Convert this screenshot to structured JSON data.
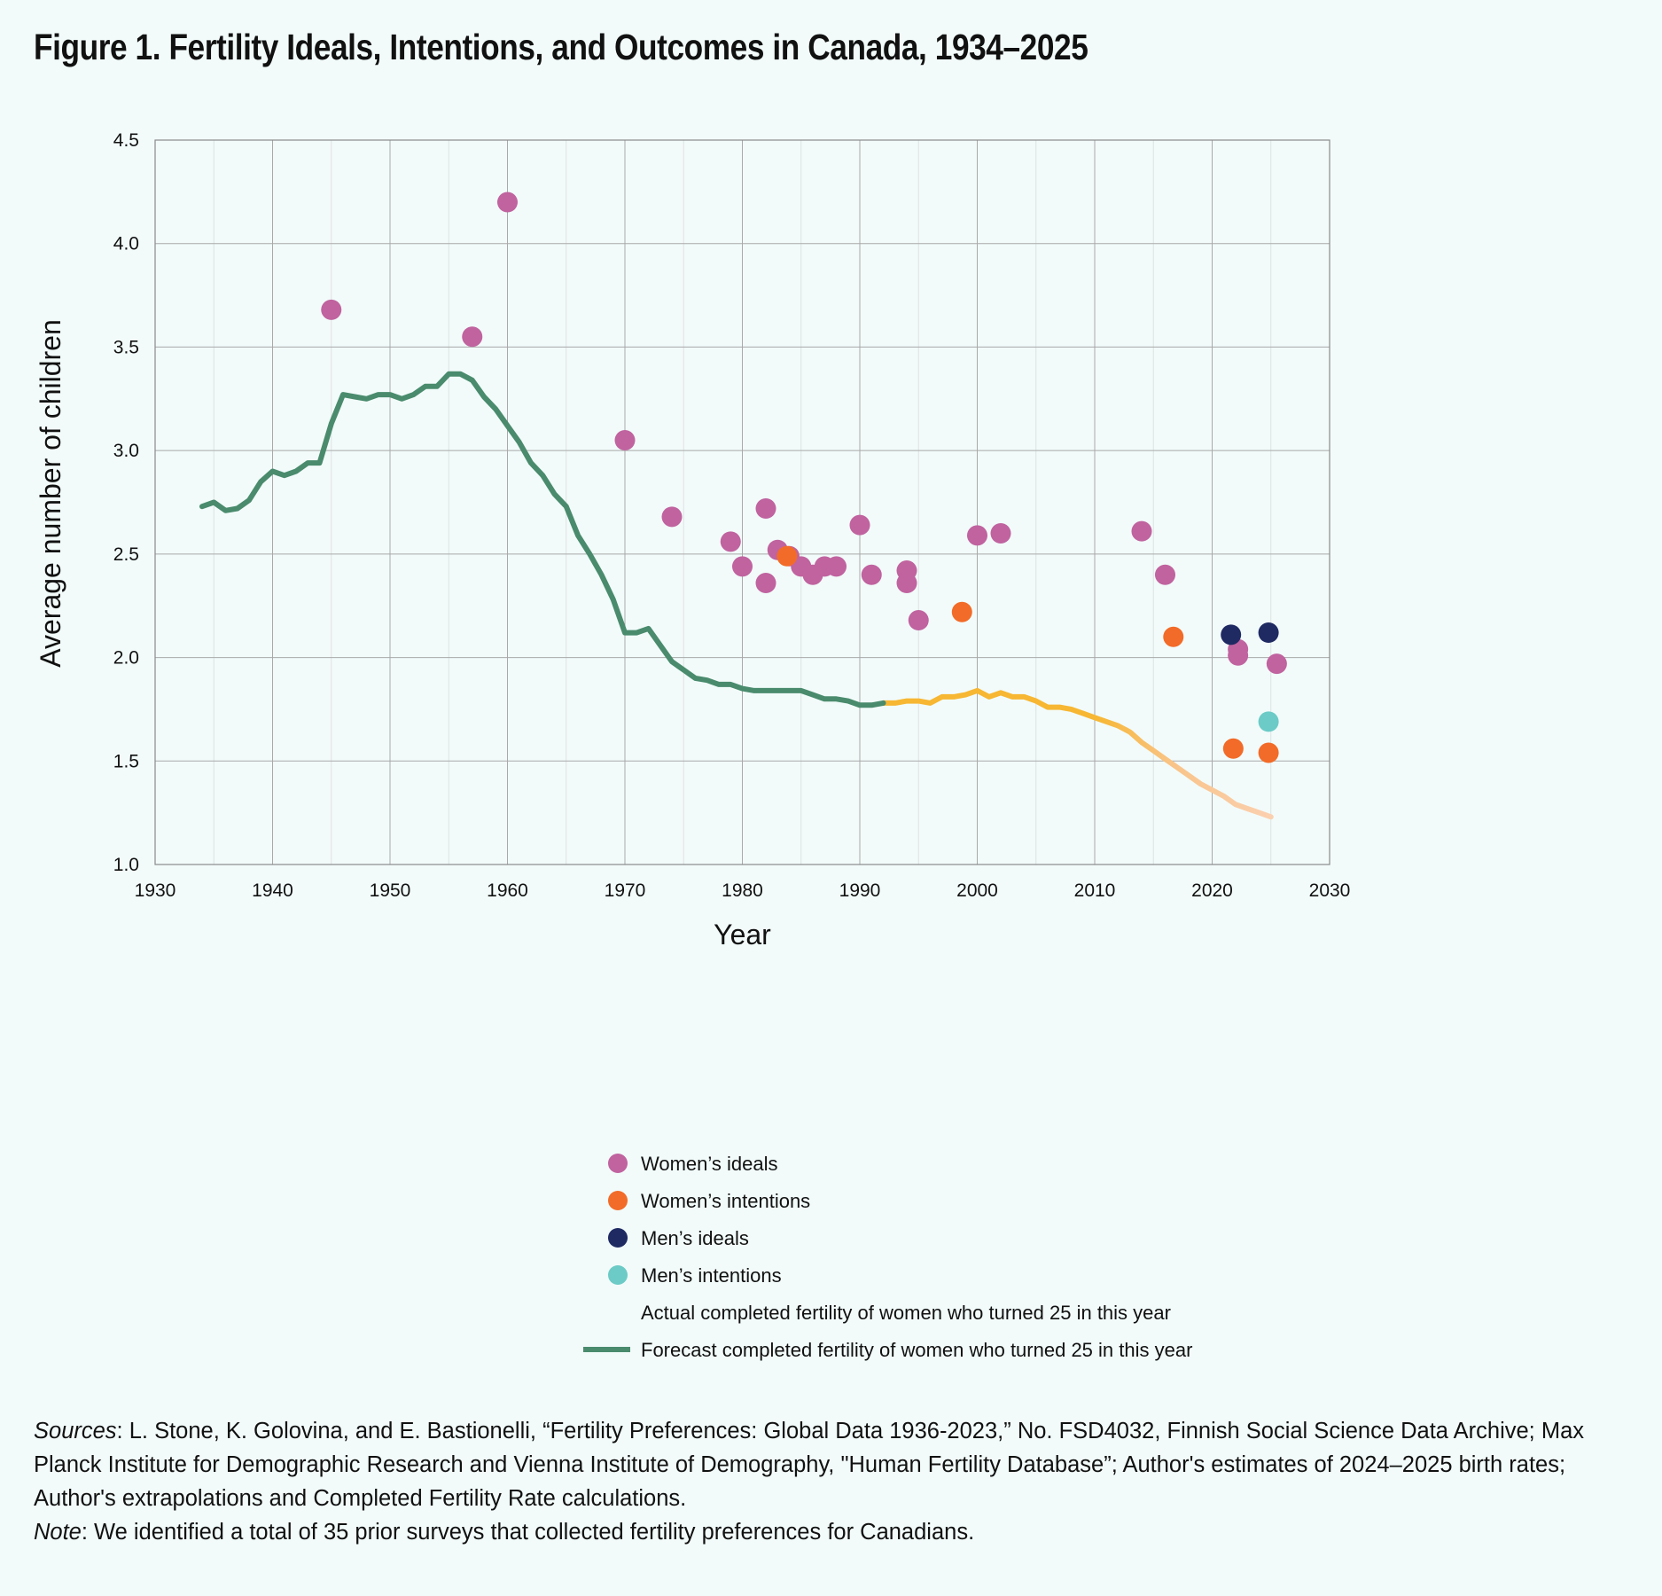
{
  "title": "Figure 1. Fertility Ideals, Intentions, and Outcomes in Canada, 1934–2025",
  "notes": {
    "sources_label": "Sources",
    "sources_text": ": L. Stone, K. Golovina, and E. Bastionelli, “Fertility Preferences: Global Data 1936-2023,” No. FSD4032, Finnish Social Science Data Archive; Max Planck Institute for Demographic Research and Vienna Institute of Demography, \"Human Fertility Database”; Author's estimates of 2024–2025 birth rates; Author's extrapolations and Completed Fertility Rate calculations.",
    "note_label": "Note",
    "note_text": ": We identified a total of 35 prior surveys that collected fertility preferences for Canadians."
  },
  "chart_data": {
    "type": "line",
    "xlabel": "Year",
    "ylabel": "Average number of children",
    "xlim": [
      1930,
      2030
    ],
    "ylim": [
      1.0,
      4.5
    ],
    "xticks": [
      1930,
      1940,
      1950,
      1960,
      1970,
      1980,
      1990,
      2000,
      2010,
      2020,
      2030
    ],
    "yticks": [
      "1.0",
      "1.5",
      "2.0",
      "2.5",
      "3.0",
      "3.5",
      "4.0",
      "4.5"
    ],
    "grid": true,
    "legend_position": "bottom",
    "colors": {
      "womens_ideals": "#c0639f",
      "womens_intentions": "#f26b28",
      "mens_ideals": "#1f2a63",
      "mens_intentions": "#6ccbc6",
      "actual": "#f7b733",
      "actual_faded": "#fbd0b0",
      "forecast": "#4a8b6d"
    },
    "series": [
      {
        "name": "Women’s ideals",
        "kind": "scatter",
        "color_key": "womens_ideals",
        "points": [
          [
            1945.0,
            3.68
          ],
          [
            1957.0,
            3.55
          ],
          [
            1960.0,
            4.2
          ],
          [
            1970.0,
            3.05
          ],
          [
            1974.0,
            2.68
          ],
          [
            1979.0,
            2.56
          ],
          [
            1980.0,
            2.44
          ],
          [
            1982.0,
            2.72
          ],
          [
            1982.0,
            2.36
          ],
          [
            1983.0,
            2.52
          ],
          [
            1984.0,
            2.49
          ],
          [
            1985.0,
            2.44
          ],
          [
            1986.0,
            2.4
          ],
          [
            1987.0,
            2.44
          ],
          [
            1988.0,
            2.44
          ],
          [
            1990.0,
            2.64
          ],
          [
            1991.0,
            2.4
          ],
          [
            1994.0,
            2.42
          ],
          [
            1994.0,
            2.36
          ],
          [
            1995.0,
            2.18
          ],
          [
            2000.0,
            2.59
          ],
          [
            2002.0,
            2.6
          ],
          [
            2014.0,
            2.61
          ],
          [
            2016.0,
            2.4
          ],
          [
            2022.2,
            2.04
          ],
          [
            2022.2,
            2.01
          ],
          [
            2025.5,
            1.97
          ]
        ]
      },
      {
        "name": "Women’s intentions",
        "kind": "scatter",
        "color_key": "womens_intentions",
        "points": [
          [
            1983.8,
            2.49
          ],
          [
            1998.7,
            2.22
          ],
          [
            2016.7,
            2.1
          ],
          [
            2021.8,
            1.56
          ],
          [
            2024.8,
            1.54
          ]
        ]
      },
      {
        "name": "Men’s ideals",
        "kind": "scatter",
        "color_key": "mens_ideals",
        "points": [
          [
            2021.6,
            2.11
          ],
          [
            2024.8,
            2.12
          ]
        ]
      },
      {
        "name": "Men’s intentions",
        "kind": "scatter",
        "color_key": "mens_intentions",
        "points": [
          [
            2024.8,
            1.69
          ]
        ]
      },
      {
        "name": "Actual completed fertility of women who turned 25 in this year",
        "kind": "line",
        "color_key": "actual",
        "points": [
          [
            1992,
            1.78
          ],
          [
            1993,
            1.78
          ],
          [
            1994,
            1.79
          ],
          [
            1995,
            1.79
          ],
          [
            1996,
            1.78
          ],
          [
            1997,
            1.81
          ],
          [
            1998,
            1.81
          ],
          [
            1999,
            1.82
          ],
          [
            2000,
            1.84
          ],
          [
            2001,
            1.81
          ],
          [
            2002,
            1.83
          ],
          [
            2003,
            1.81
          ],
          [
            2004,
            1.81
          ],
          [
            2005,
            1.79
          ],
          [
            2006,
            1.76
          ],
          [
            2007,
            1.76
          ],
          [
            2008,
            1.75
          ],
          [
            2009,
            1.73
          ],
          [
            2010,
            1.71
          ],
          [
            2011,
            1.69
          ],
          [
            2012,
            1.67
          ],
          [
            2013,
            1.64
          ],
          [
            2014,
            1.59
          ],
          [
            2015,
            1.55
          ],
          [
            2016,
            1.51
          ],
          [
            2017,
            1.47
          ],
          [
            2018,
            1.43
          ],
          [
            2019,
            1.39
          ],
          [
            2020,
            1.36
          ],
          [
            2021,
            1.33
          ],
          [
            2022,
            1.29
          ],
          [
            2023,
            1.27
          ],
          [
            2024,
            1.25
          ],
          [
            2025,
            1.23
          ]
        ]
      },
      {
        "name": "Forecast completed fertility of women who turned 25 in this year",
        "kind": "line",
        "color_key": "forecast",
        "points": [
          [
            1934,
            2.73
          ],
          [
            1935,
            2.75
          ],
          [
            1936,
            2.71
          ],
          [
            1937,
            2.72
          ],
          [
            1938,
            2.76
          ],
          [
            1939,
            2.85
          ],
          [
            1940,
            2.9
          ],
          [
            1941,
            2.88
          ],
          [
            1942,
            2.9
          ],
          [
            1943,
            2.94
          ],
          [
            1944,
            2.94
          ],
          [
            1945,
            3.13
          ],
          [
            1946,
            3.27
          ],
          [
            1947,
            3.26
          ],
          [
            1948,
            3.25
          ],
          [
            1949,
            3.27
          ],
          [
            1950,
            3.27
          ],
          [
            1951,
            3.25
          ],
          [
            1952,
            3.27
          ],
          [
            1953,
            3.31
          ],
          [
            1954,
            3.31
          ],
          [
            1955,
            3.37
          ],
          [
            1956,
            3.37
          ],
          [
            1957,
            3.34
          ],
          [
            1958,
            3.26
          ],
          [
            1959,
            3.2
          ],
          [
            1960,
            3.12
          ],
          [
            1961,
            3.04
          ],
          [
            1962,
            2.94
          ],
          [
            1963,
            2.88
          ],
          [
            1964,
            2.79
          ],
          [
            1965,
            2.73
          ],
          [
            1966,
            2.59
          ],
          [
            1967,
            2.5
          ],
          [
            1968,
            2.4
          ],
          [
            1969,
            2.28
          ],
          [
            1970,
            2.12
          ],
          [
            1971,
            2.12
          ],
          [
            1972,
            2.14
          ],
          [
            1973,
            2.06
          ],
          [
            1974,
            1.98
          ],
          [
            1975,
            1.94
          ],
          [
            1976,
            1.9
          ],
          [
            1977,
            1.89
          ],
          [
            1978,
            1.87
          ],
          [
            1979,
            1.87
          ],
          [
            1980,
            1.85
          ],
          [
            1981,
            1.84
          ],
          [
            1982,
            1.84
          ],
          [
            1983,
            1.84
          ],
          [
            1984,
            1.84
          ],
          [
            1985,
            1.84
          ],
          [
            1986,
            1.82
          ],
          [
            1987,
            1.8
          ],
          [
            1988,
            1.8
          ],
          [
            1989,
            1.79
          ],
          [
            1990,
            1.77
          ],
          [
            1991,
            1.77
          ],
          [
            1992,
            1.78
          ]
        ]
      }
    ]
  }
}
